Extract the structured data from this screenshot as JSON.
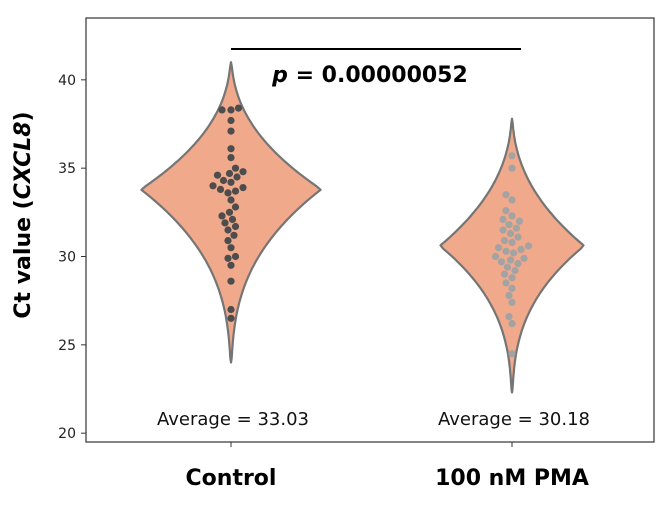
{
  "chart_data": {
    "type": "violin",
    "title": "",
    "xlabel": "",
    "ylabel_prefix": "Ct value (",
    "ylabel_gene": "CXCL8",
    "ylabel_suffix": ")",
    "ylim": [
      19.5,
      43.5
    ],
    "yticks": [
      20,
      25,
      30,
      35,
      40
    ],
    "categories": [
      "Control",
      "100 nM PMA"
    ],
    "annotation": {
      "p_label": "p",
      "p_text": " = 0.00000052"
    },
    "averages": [
      "Average = 33.03",
      "Average = 30.18"
    ],
    "colors": {
      "violin_fill": "#f0a98a",
      "violin_stroke": "#757575",
      "control_points": "#4d4d4d",
      "pma_points": "#a3a3a3"
    },
    "series": [
      {
        "name": "Control",
        "min": 24.0,
        "max": 41.0,
        "mode": 33.8,
        "width_at_mode": 1.0,
        "values": [
          38.4,
          38.3,
          38.3,
          37.7,
          37.1,
          36.1,
          35.6,
          35.0,
          34.8,
          34.7,
          34.6,
          34.5,
          34.3,
          34.2,
          34.0,
          33.9,
          33.8,
          33.7,
          33.6,
          33.2,
          32.8,
          32.5,
          32.3,
          32.1,
          31.9,
          31.7,
          31.5,
          31.2,
          30.9,
          30.5,
          30.0,
          29.9,
          29.5,
          28.6,
          27.0,
          26.5
        ]
      },
      {
        "name": "100 nM PMA",
        "min": 22.3,
        "max": 37.8,
        "mode": 30.6,
        "width_at_mode": 0.8,
        "values": [
          35.7,
          35.0,
          33.5,
          33.2,
          32.6,
          32.3,
          32.1,
          32.0,
          31.8,
          31.6,
          31.5,
          31.3,
          31.1,
          30.9,
          30.8,
          30.6,
          30.5,
          30.4,
          30.3,
          30.2,
          30.0,
          29.9,
          29.8,
          29.7,
          29.6,
          29.4,
          29.2,
          29.0,
          28.8,
          28.5,
          28.2,
          27.8,
          27.4,
          26.6,
          26.2,
          24.5
        ]
      }
    ]
  }
}
